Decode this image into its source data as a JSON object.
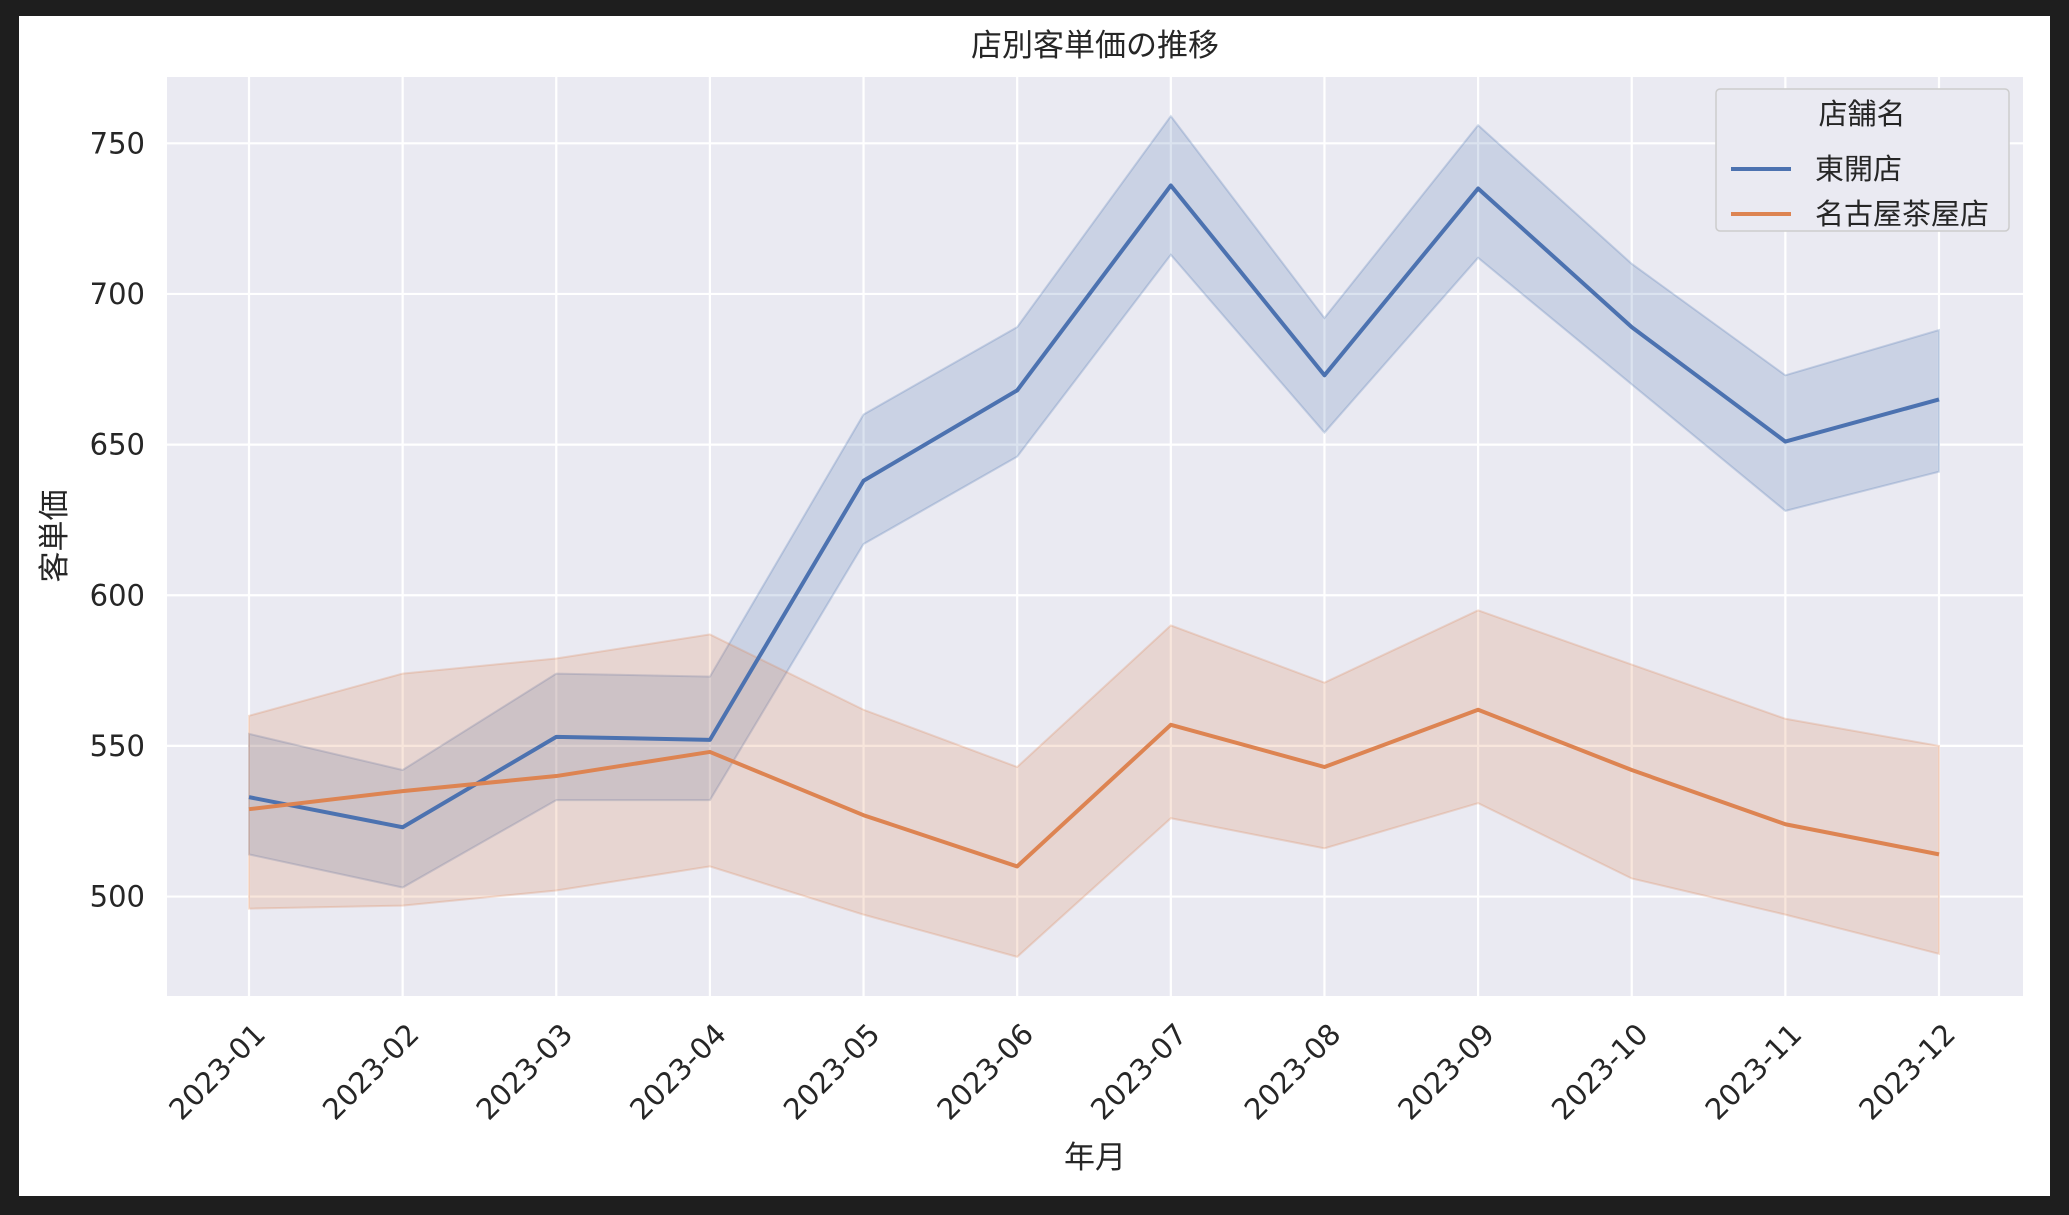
{
  "chart_data": {
    "type": "line",
    "title": "店別客単価の推移",
    "xlabel": "年月",
    "ylabel": "客単価",
    "categories": [
      "2023-01",
      "2023-02",
      "2023-03",
      "2023-04",
      "2023-05",
      "2023-06",
      "2023-07",
      "2023-08",
      "2023-09",
      "2023-10",
      "2023-11",
      "2023-12"
    ],
    "yticks": [
      500,
      550,
      600,
      650,
      700,
      750
    ],
    "ylim": [
      467,
      772
    ],
    "grid": true,
    "legend": {
      "title": "店舗名",
      "placement": "top-right"
    },
    "series": [
      {
        "name": "東開店",
        "color": "#4c72b0",
        "values": [
          533,
          523,
          553,
          552,
          638,
          668,
          736,
          673,
          735,
          689,
          651,
          665
        ],
        "ci_low": [
          514,
          503,
          532,
          532,
          617,
          646,
          713,
          654,
          712,
          670,
          628,
          641
        ],
        "ci_high": [
          554,
          542,
          574,
          573,
          660,
          689,
          759,
          692,
          756,
          710,
          673,
          688
        ]
      },
      {
        "name": "名古屋茶屋店",
        "color": "#dd8452",
        "values": [
          529,
          535,
          540,
          548,
          527,
          510,
          557,
          543,
          562,
          542,
          524,
          514
        ],
        "ci_low": [
          496,
          497,
          502,
          510,
          494,
          480,
          526,
          516,
          531,
          506,
          494,
          481
        ],
        "ci_high": [
          560,
          574,
          579,
          587,
          562,
          543,
          590,
          571,
          595,
          577,
          559,
          550
        ]
      }
    ]
  }
}
